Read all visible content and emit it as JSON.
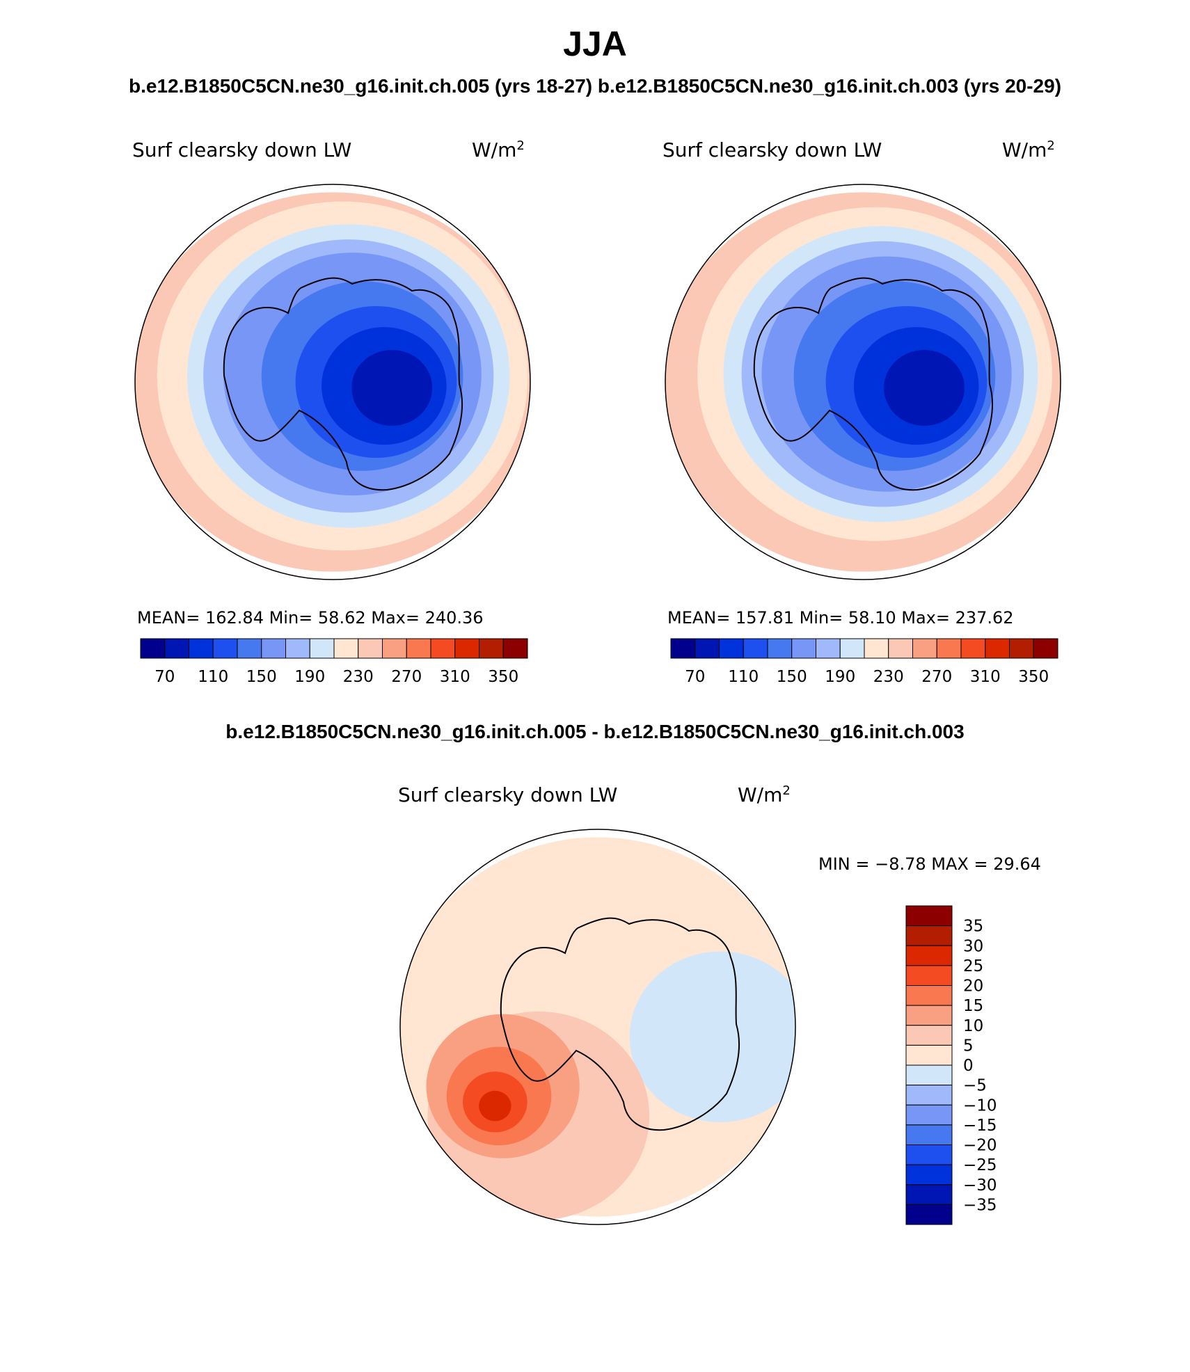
{
  "season": "JJA",
  "case1": "b.e12.B1850C5CN.ne30_g16.init.ch.005 (yrs 18-27)",
  "case2": "b.e12.B1850C5CN.ne30_g16.init.ch.003 (yrs 20-29)",
  "diff_title": "b.e12.B1850C5CN.ne30_g16.init.ch.005 - b.e12.B1850C5CN.ne30_g16.init.ch.003",
  "panels": {
    "left": {
      "variable": "Surf clearsky down LW",
      "units": "W/m",
      "units_sup": "2",
      "stats": "MEAN= 162.84   Min=  58.62   Max= 240.36"
    },
    "right": {
      "variable": "Surf clearsky down LW",
      "units": "W/m",
      "units_sup": "2",
      "stats": "MEAN= 157.81   Min=  58.10   Max= 237.62"
    },
    "diff": {
      "variable": "Surf clearsky down LW",
      "units": "W/m",
      "units_sup": "2",
      "stats": "MIN =  −8.78 MAX =   29.64"
    }
  },
  "colors": {
    "abs_palette": [
      "#00008c",
      "#0016b4",
      "#0032dc",
      "#1e50f0",
      "#4678f0",
      "#7896f5",
      "#a0b9fa",
      "#d2e6fa",
      "#ffe6d2",
      "#fac8b4",
      "#faa082",
      "#fa7850",
      "#f54b23",
      "#dc2800",
      "#b41e00",
      "#8c0000"
    ],
    "diff_palette": [
      "#00008c",
      "#0016b4",
      "#0032dc",
      "#1e50f0",
      "#4678f0",
      "#7896f5",
      "#a0b9fa",
      "#d2e6fa",
      "#ffe6d2",
      "#fac8b4",
      "#faa082",
      "#fa7850",
      "#f54b23",
      "#dc2800",
      "#b41e00",
      "#8c0000"
    ]
  },
  "chart_data": [
    {
      "type": "heatmap",
      "projection": "south-polar",
      "title": "Surf clearsky down LW",
      "units": "W/m2",
      "stats": {
        "mean": 162.84,
        "min": 58.62,
        "max": 240.36
      },
      "levels": [
        70,
        90,
        110,
        130,
        150,
        170,
        190,
        210,
        230,
        250,
        270,
        290,
        310,
        330,
        350
      ],
      "tick_labels": [
        "70",
        "110",
        "150",
        "190",
        "230",
        "270",
        "310",
        "350"
      ],
      "contours": [
        {
          "level": 230,
          "shape": "ring",
          "cx": 0.0,
          "cy": 0.0,
          "r": 1.0
        },
        {
          "level": 210,
          "cx": 0.05,
          "cy": -0.03,
          "r": 0.92
        },
        {
          "level": 190,
          "cx": 0.08,
          "cy": -0.03,
          "r": 0.8
        },
        {
          "level": 170,
          "cx": 0.08,
          "cy": -0.03,
          "r": 0.72
        },
        {
          "level": 150,
          "cx": 0.1,
          "cy": -0.04,
          "r": 0.64
        },
        {
          "level": 130,
          "cx": 0.15,
          "cy": -0.03,
          "r": 0.5
        },
        {
          "level": 110,
          "cx": 0.22,
          "cy": 0.0,
          "r": 0.4
        },
        {
          "level": 90,
          "cx": 0.26,
          "cy": 0.02,
          "r": 0.31
        },
        {
          "level": 70,
          "cx": 0.3,
          "cy": 0.03,
          "r": 0.2
        }
      ]
    },
    {
      "type": "heatmap",
      "projection": "south-polar",
      "title": "Surf clearsky down LW",
      "units": "W/m2",
      "stats": {
        "mean": 157.81,
        "min": 58.1,
        "max": 237.62
      },
      "levels": [
        70,
        90,
        110,
        130,
        150,
        170,
        190,
        210,
        230,
        250,
        270,
        290,
        310,
        330,
        350
      ],
      "tick_labels": [
        "70",
        "110",
        "150",
        "190",
        "230",
        "270",
        "310",
        "350"
      ],
      "contours": [
        {
          "level": 230,
          "shape": "ring",
          "cx": 0.0,
          "cy": 0.0,
          "r": 1.0
        },
        {
          "level": 210,
          "cx": 0.06,
          "cy": -0.04,
          "r": 0.88
        },
        {
          "level": 190,
          "cx": 0.09,
          "cy": -0.04,
          "r": 0.78
        },
        {
          "level": 170,
          "cx": 0.1,
          "cy": -0.04,
          "r": 0.7
        },
        {
          "level": 150,
          "cx": 0.12,
          "cy": -0.04,
          "r": 0.62
        },
        {
          "level": 130,
          "cx": 0.16,
          "cy": -0.03,
          "r": 0.5
        },
        {
          "level": 110,
          "cx": 0.22,
          "cy": 0.0,
          "r": 0.4
        },
        {
          "level": 90,
          "cx": 0.27,
          "cy": 0.02,
          "r": 0.31
        },
        {
          "level": 70,
          "cx": 0.31,
          "cy": 0.03,
          "r": 0.2
        }
      ]
    },
    {
      "type": "heatmap",
      "projection": "south-polar",
      "title": "Surf clearsky down LW",
      "units": "W/m2",
      "stats": {
        "min": -8.78,
        "max": 29.64
      },
      "levels": [
        -35,
        -30,
        -25,
        -20,
        -15,
        -10,
        -5,
        0,
        5,
        10,
        15,
        20,
        25,
        30,
        35
      ],
      "tick_labels": [
        "35",
        "30",
        "25",
        "20",
        "15",
        "10",
        "5",
        "0",
        "−5",
        "−10",
        "−15",
        "−20",
        "−25",
        "−30",
        "−35"
      ],
      "contours": [
        {
          "level": 0,
          "shape": "ring",
          "cx": 0.0,
          "cy": 0.0,
          "r": 1.0
        },
        {
          "level": -5,
          "cx": 0.62,
          "cy": 0.05,
          "r": 0.45
        },
        {
          "level": 5,
          "cx": -0.3,
          "cy": 0.45,
          "r": 0.55
        },
        {
          "level": 10,
          "cx": -0.48,
          "cy": 0.3,
          "r": 0.38
        },
        {
          "level": 15,
          "cx": -0.5,
          "cy": 0.35,
          "r": 0.26
        },
        {
          "level": 20,
          "cx": -0.52,
          "cy": 0.38,
          "r": 0.16
        },
        {
          "level": 25,
          "cx": -0.52,
          "cy": 0.4,
          "r": 0.08
        }
      ]
    }
  ]
}
